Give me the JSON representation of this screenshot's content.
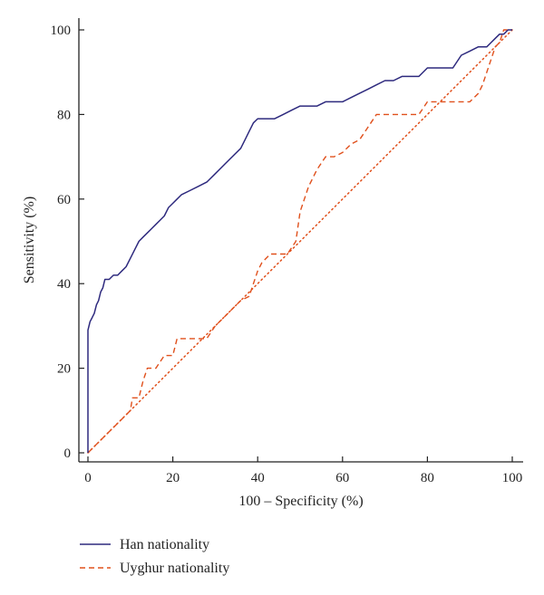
{
  "chart_data": {
    "type": "line",
    "xlabel": "100 – Specificity (%)",
    "ylabel": "Sensitivity (%)",
    "xlim": [
      0,
      100
    ],
    "ylim": [
      0,
      100
    ],
    "xticks": [
      0,
      20,
      40,
      60,
      80,
      100
    ],
    "yticks": [
      0,
      20,
      40,
      60,
      80,
      100
    ],
    "legend_position": "bottom-left",
    "series": [
      {
        "name": "Han nationality",
        "color": "#2e2a7e",
        "style": "solid",
        "x": [
          0,
          0,
          0.5,
          1,
          1.5,
          2,
          2.5,
          3,
          3.5,
          4,
          5,
          6,
          7,
          8,
          9,
          10,
          11,
          12,
          13,
          14,
          15,
          16,
          17,
          18,
          19,
          20,
          21,
          22,
          24,
          26,
          28,
          30,
          32,
          34,
          36,
          37,
          38,
          39,
          40,
          42,
          44,
          46,
          48,
          50,
          52,
          54,
          56,
          58,
          60,
          62,
          64,
          66,
          68,
          70,
          72,
          74,
          76,
          78,
          80,
          82,
          84,
          86,
          88,
          90,
          92,
          94,
          95,
          96,
          97,
          98,
          99,
          100
        ],
        "y": [
          0,
          29,
          31,
          32,
          33,
          35,
          36,
          38,
          39,
          41,
          41,
          42,
          42,
          43,
          44,
          46,
          48,
          50,
          51,
          52,
          53,
          54,
          55,
          56,
          58,
          59,
          60,
          61,
          62,
          63,
          64,
          66,
          68,
          70,
          72,
          74,
          76,
          78,
          79,
          79,
          79,
          80,
          81,
          82,
          82,
          82,
          83,
          83,
          83,
          84,
          85,
          86,
          87,
          88,
          88,
          89,
          89,
          89,
          91,
          91,
          91,
          91,
          94,
          95,
          96,
          96,
          97,
          98,
          99,
          99,
          100,
          100
        ]
      },
      {
        "name": "Uyghur nationality",
        "color": "#e0501c",
        "style": "dashed",
        "x": [
          0,
          3,
          7,
          10,
          10.5,
          12,
          13,
          14,
          16,
          18,
          20,
          21,
          22,
          25,
          28,
          30,
          32,
          34,
          36,
          38,
          40,
          41,
          43,
          45,
          47,
          49,
          50,
          51,
          52,
          54,
          56,
          58,
          60,
          62,
          64,
          66,
          68,
          70,
          72,
          74,
          76,
          78,
          80,
          82,
          84,
          86,
          88,
          90,
          92,
          93,
          94,
          95,
          96,
          97,
          98,
          100
        ],
        "y": [
          0,
          3,
          7,
          10,
          13,
          13,
          17,
          20,
          20,
          23,
          23,
          27,
          27,
          27,
          27,
          30,
          32,
          34,
          36,
          37,
          43,
          45,
          47,
          47,
          47,
          50,
          57,
          60,
          63,
          67,
          70,
          70,
          71,
          73,
          74,
          77,
          80,
          80,
          80,
          80,
          80,
          80,
          83,
          83,
          83,
          83,
          83,
          83,
          85,
          87,
          90,
          93,
          96,
          97,
          100,
          100
        ]
      },
      {
        "name": "",
        "color": "#e0501c",
        "style": "dotted",
        "x": [
          0,
          100
        ],
        "y": [
          0,
          100
        ]
      }
    ]
  }
}
